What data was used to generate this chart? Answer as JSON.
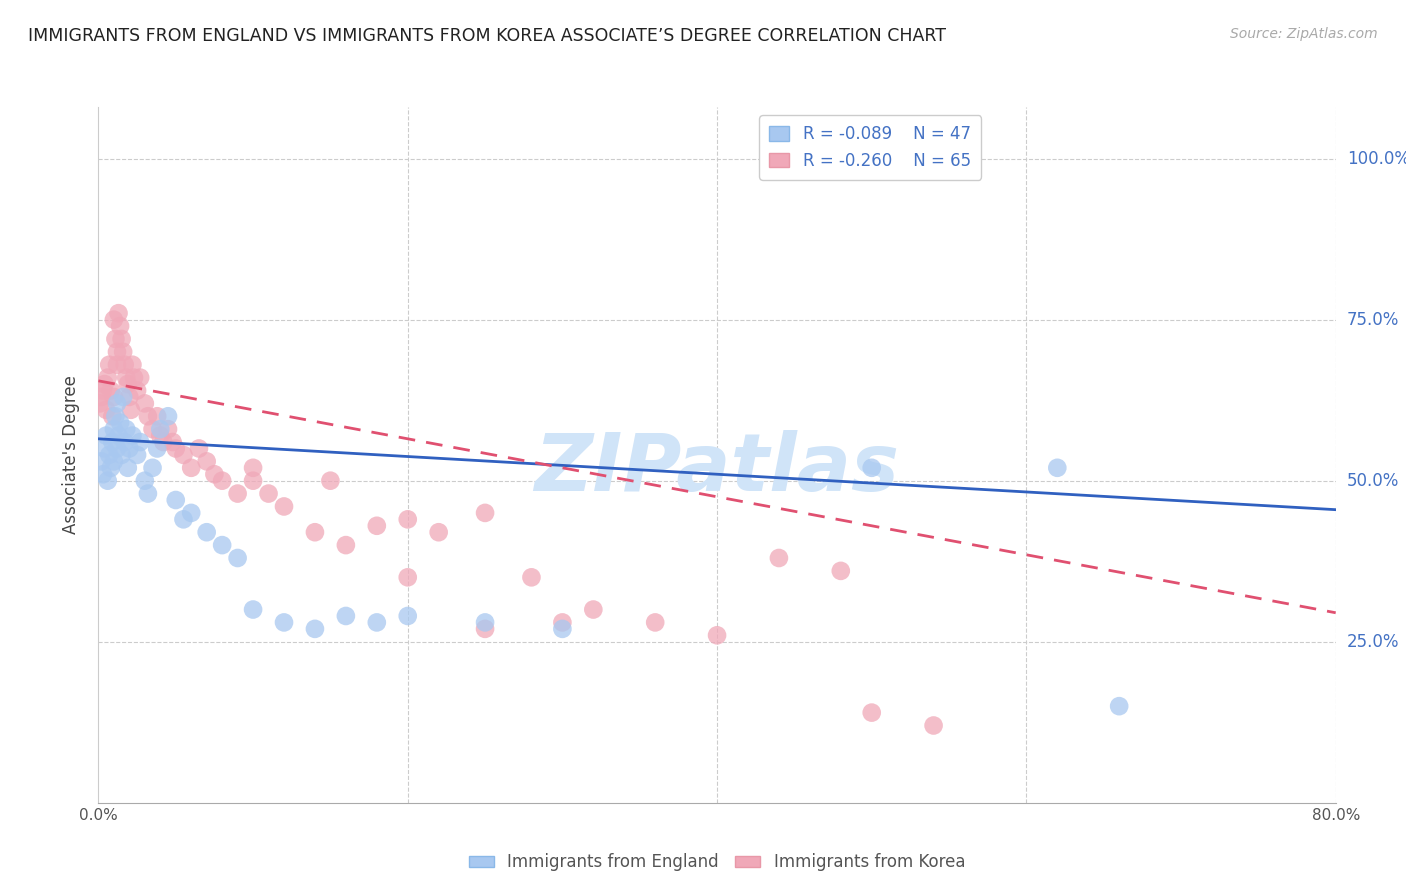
{
  "title": "IMMIGRANTS FROM ENGLAND VS IMMIGRANTS FROM KOREA ASSOCIATE’S DEGREE CORRELATION CHART",
  "source_text": "Source: ZipAtlas.com",
  "ylabel": "Associate's Degree",
  "right_ytick_labels": [
    "100.0%",
    "75.0%",
    "50.0%",
    "25.0%"
  ],
  "right_ytick_values": [
    1.0,
    0.75,
    0.5,
    0.25
  ],
  "xlim": [
    0.0,
    0.8
  ],
  "ylim": [
    0.0,
    1.08
  ],
  "legend_r_england": "-0.089",
  "legend_n_england": "47",
  "legend_r_korea": "-0.260",
  "legend_n_korea": "65",
  "color_england": "#a8c8f0",
  "color_korea": "#f0a8b8",
  "color_england_line": "#3060c0",
  "color_korea_line": "#e05070",
  "watermark": "ZIPatlas",
  "watermark_color": "#d0e4f8",
  "england_x": [
    0.002,
    0.003,
    0.004,
    0.005,
    0.006,
    0.007,
    0.008,
    0.009,
    0.01,
    0.01,
    0.011,
    0.012,
    0.012,
    0.013,
    0.014,
    0.015,
    0.016,
    0.017,
    0.018,
    0.019,
    0.02,
    0.022,
    0.025,
    0.027,
    0.03,
    0.032,
    0.035,
    0.038,
    0.04,
    0.045,
    0.05,
    0.055,
    0.06,
    0.07,
    0.08,
    0.09,
    0.1,
    0.12,
    0.14,
    0.16,
    0.18,
    0.2,
    0.25,
    0.3,
    0.5,
    0.62,
    0.66
  ],
  "england_y": [
    0.53,
    0.51,
    0.55,
    0.57,
    0.5,
    0.54,
    0.52,
    0.56,
    0.58,
    0.53,
    0.6,
    0.62,
    0.55,
    0.57,
    0.59,
    0.54,
    0.63,
    0.56,
    0.58,
    0.52,
    0.55,
    0.57,
    0.54,
    0.56,
    0.5,
    0.48,
    0.52,
    0.55,
    0.58,
    0.6,
    0.47,
    0.44,
    0.45,
    0.42,
    0.4,
    0.38,
    0.3,
    0.28,
    0.27,
    0.29,
    0.28,
    0.29,
    0.28,
    0.27,
    0.52,
    0.52,
    0.15
  ],
  "korea_x": [
    0.001,
    0.002,
    0.003,
    0.004,
    0.005,
    0.006,
    0.007,
    0.008,
    0.009,
    0.01,
    0.01,
    0.011,
    0.012,
    0.012,
    0.013,
    0.014,
    0.015,
    0.016,
    0.017,
    0.018,
    0.019,
    0.02,
    0.021,
    0.022,
    0.023,
    0.025,
    0.027,
    0.03,
    0.032,
    0.035,
    0.038,
    0.04,
    0.042,
    0.045,
    0.048,
    0.05,
    0.055,
    0.06,
    0.065,
    0.07,
    0.075,
    0.08,
    0.09,
    0.1,
    0.11,
    0.12,
    0.14,
    0.16,
    0.18,
    0.2,
    0.22,
    0.25,
    0.28,
    0.32,
    0.36,
    0.4,
    0.44,
    0.48,
    0.5,
    0.54,
    0.1,
    0.15,
    0.2,
    0.25,
    0.3
  ],
  "korea_y": [
    0.62,
    0.63,
    0.64,
    0.65,
    0.61,
    0.66,
    0.68,
    0.64,
    0.6,
    0.63,
    0.75,
    0.72,
    0.7,
    0.68,
    0.76,
    0.74,
    0.72,
    0.7,
    0.68,
    0.66,
    0.65,
    0.63,
    0.61,
    0.68,
    0.66,
    0.64,
    0.66,
    0.62,
    0.6,
    0.58,
    0.6,
    0.57,
    0.56,
    0.58,
    0.56,
    0.55,
    0.54,
    0.52,
    0.55,
    0.53,
    0.51,
    0.5,
    0.48,
    0.5,
    0.48,
    0.46,
    0.42,
    0.4,
    0.43,
    0.44,
    0.42,
    0.45,
    0.35,
    0.3,
    0.28,
    0.26,
    0.38,
    0.36,
    0.14,
    0.12,
    0.52,
    0.5,
    0.35,
    0.27,
    0.28
  ],
  "eng_line_x": [
    0.0,
    0.8
  ],
  "eng_line_y": [
    0.565,
    0.455
  ],
  "kor_line_x": [
    0.0,
    0.8
  ],
  "kor_line_y": [
    0.655,
    0.295
  ]
}
